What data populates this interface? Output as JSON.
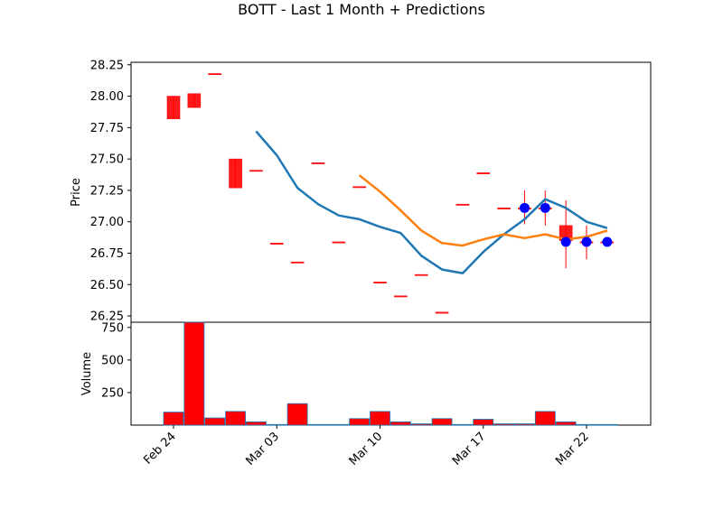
{
  "title": "BOTT - Last 1 Month + Predictions",
  "colors": {
    "candle": "#ff0000",
    "line1": "#1f77b4",
    "line2": "#ff7f0e",
    "marker": "#0000ff",
    "volume_edge": "#1f77b4"
  },
  "chart_data": [
    {
      "type": "candlestick",
      "ylabel": "Price",
      "ylim": [
        26.2,
        28.27
      ],
      "yticks": [
        "26.25",
        "26.50",
        "26.75",
        "27.00",
        "27.25",
        "27.50",
        "27.75",
        "28.00",
        "28.25"
      ],
      "ytick_values": [
        26.25,
        26.5,
        26.75,
        27.0,
        27.25,
        27.5,
        27.75,
        28.0,
        28.25
      ],
      "grid": false,
      "candles": [
        {
          "x": 0,
          "open": 28.0,
          "close": 27.82,
          "high": 28.0,
          "low": 27.82
        },
        {
          "x": 1,
          "open": 28.02,
          "close": 27.91,
          "high": 28.02,
          "low": 27.91
        },
        {
          "x": 2,
          "open": 28.18,
          "close": 28.18,
          "high": 28.18,
          "low": 28.18
        },
        {
          "x": 3,
          "open": 27.5,
          "close": 27.27,
          "high": 27.5,
          "low": 27.27
        },
        {
          "x": 4,
          "open": 27.41,
          "close": 27.41,
          "high": 27.41,
          "low": 27.41
        },
        {
          "x": 5,
          "open": 26.83,
          "close": 26.83,
          "high": 26.83,
          "low": 26.83
        },
        {
          "x": 6,
          "open": 26.68,
          "close": 26.68,
          "high": 26.68,
          "low": 26.68
        },
        {
          "x": 7,
          "open": 27.47,
          "close": 27.47,
          "high": 27.47,
          "low": 27.47
        },
        {
          "x": 8,
          "open": 26.84,
          "close": 26.84,
          "high": 26.84,
          "low": 26.84
        },
        {
          "x": 9,
          "open": 27.28,
          "close": 27.28,
          "high": 27.28,
          "low": 27.28
        },
        {
          "x": 10,
          "open": 26.52,
          "close": 26.52,
          "high": 26.52,
          "low": 26.52
        },
        {
          "x": 11,
          "open": 26.41,
          "close": 26.41,
          "high": 26.41,
          "low": 26.41
        },
        {
          "x": 12,
          "open": 26.58,
          "close": 26.58,
          "high": 26.58,
          "low": 26.58
        },
        {
          "x": 13,
          "open": 26.28,
          "close": 26.28,
          "high": 26.28,
          "low": 26.28
        },
        {
          "x": 14,
          "open": 27.14,
          "close": 27.14,
          "high": 27.14,
          "low": 27.14
        },
        {
          "x": 15,
          "open": 27.39,
          "close": 27.39,
          "high": 27.39,
          "low": 27.39
        },
        {
          "x": 16,
          "open": 27.11,
          "close": 27.11,
          "high": 27.11,
          "low": 27.11
        },
        {
          "x": 17,
          "open": 27.11,
          "close": 27.11,
          "high": 27.25,
          "low": 26.98
        },
        {
          "x": 18,
          "open": 27.11,
          "close": 27.11,
          "high": 27.25,
          "low": 26.97
        },
        {
          "x": 19,
          "open": 26.97,
          "close": 26.85,
          "high": 27.17,
          "low": 26.63
        },
        {
          "x": 20,
          "open": 26.84,
          "close": 26.84,
          "high": 26.97,
          "low": 26.7
        },
        {
          "x": 21,
          "open": 26.84,
          "close": 26.84,
          "high": 26.84,
          "low": 26.84
        }
      ],
      "series": [
        {
          "values": [
            [
              4,
              27.72
            ],
            [
              5,
              27.53
            ],
            [
              6,
              27.27
            ],
            [
              7,
              27.14
            ],
            [
              8,
              27.05
            ],
            [
              9,
              27.02
            ],
            [
              10,
              26.96
            ],
            [
              11,
              26.91
            ],
            [
              12,
              26.73
            ],
            [
              13,
              26.62
            ],
            [
              14,
              26.59
            ],
            [
              15,
              26.76
            ],
            [
              16,
              26.9
            ],
            [
              17,
              27.02
            ],
            [
              18,
              27.18
            ],
            [
              19,
              27.11
            ],
            [
              20,
              27.0
            ],
            [
              21,
              26.95
            ]
          ]
        },
        {
          "values": [
            [
              9,
              27.37
            ],
            [
              10,
              27.24
            ],
            [
              11,
              27.09
            ],
            [
              12,
              26.93
            ],
            [
              13,
              26.83
            ],
            [
              14,
              26.81
            ],
            [
              15,
              26.86
            ],
            [
              16,
              26.9
            ],
            [
              17,
              26.87
            ],
            [
              18,
              26.9
            ],
            [
              19,
              26.86
            ],
            [
              20,
              26.88
            ],
            [
              21,
              26.93
            ]
          ]
        }
      ],
      "markers": [
        [
          17,
          27.11
        ],
        [
          18,
          27.11
        ],
        [
          19,
          26.84
        ],
        [
          20,
          26.84
        ],
        [
          21,
          26.84
        ]
      ]
    },
    {
      "type": "bar",
      "ylabel": "Volume",
      "ylim": [
        0,
        790
      ],
      "yticks": [
        "250",
        "500",
        "750"
      ],
      "ytick_values": [
        250,
        500,
        750
      ],
      "xticks": [
        "Feb 24",
        "Mar 03",
        "Mar 10",
        "Mar 17",
        "Mar 22"
      ],
      "xtick_positions": [
        0,
        5,
        10,
        15,
        20
      ],
      "values": [
        100,
        790,
        55,
        105,
        25,
        5,
        165,
        5,
        5,
        50,
        105,
        25,
        10,
        50,
        5,
        45,
        10,
        10,
        105,
        25,
        5,
        5
      ]
    }
  ]
}
